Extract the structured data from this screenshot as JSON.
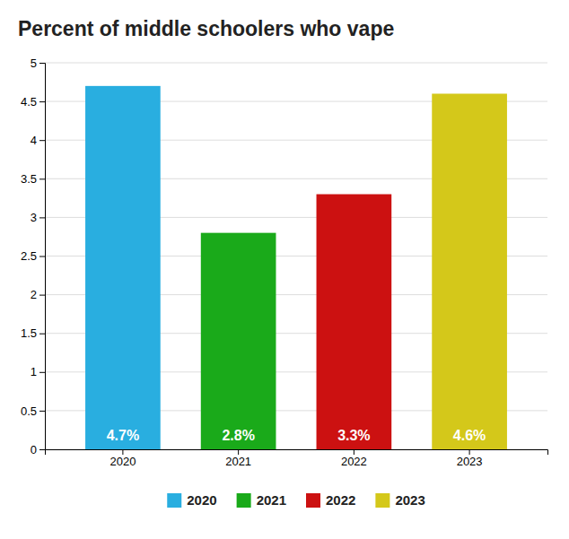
{
  "chart_data": {
    "type": "bar",
    "title": "Percent of middle schoolers who vape",
    "categories": [
      "2020",
      "2021",
      "2022",
      "2023"
    ],
    "values": [
      4.7,
      2.8,
      3.3,
      4.6
    ],
    "value_labels": [
      "4.7%",
      "2.8%",
      "3.3%",
      "4.6%"
    ],
    "colors": [
      "#29aee0",
      "#1aaa1a",
      "#cc1111",
      "#d4c81a"
    ],
    "ylim": [
      0,
      5
    ],
    "yticks": [
      0,
      0.5,
      1,
      1.5,
      2,
      2.5,
      3,
      3.5,
      4,
      4.5,
      5
    ],
    "grid": true,
    "data_labels": true,
    "legend": "bottom"
  }
}
